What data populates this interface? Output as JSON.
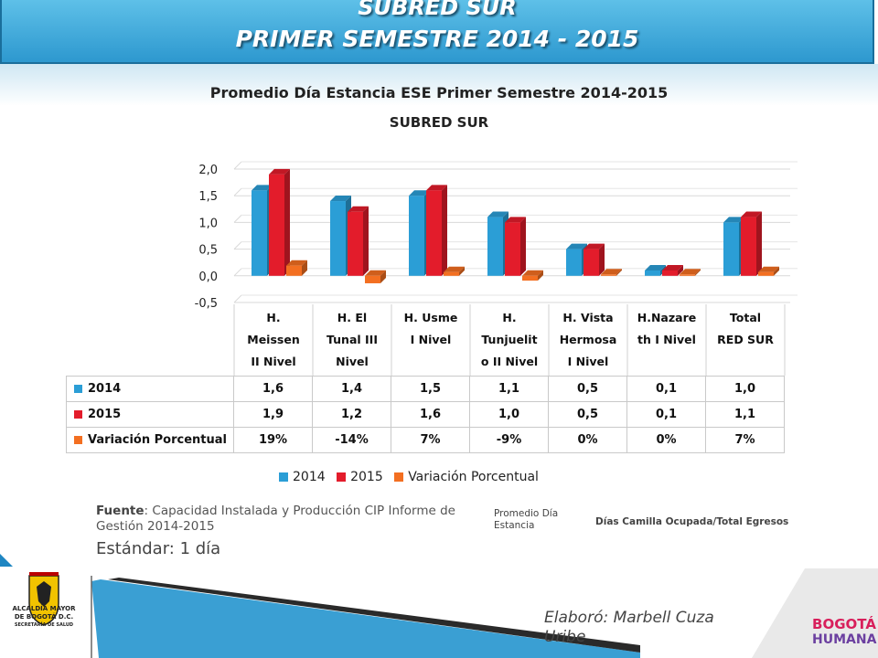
{
  "header": {
    "line1": "SUBRED SUR",
    "line2": "PRIMER SEMESTRE 2014 - 2015"
  },
  "chart_data": {
    "type": "bar",
    "title": "Promedio Día Estancia ESE Primer Semestre 2014-2015",
    "subtitle": "SUBRED SUR",
    "categories": [
      "H. Meissen II Nivel",
      "H. El Tunal III Nivel",
      "H. Usme I Nivel",
      "H. Tunjuelito II Nivel",
      "H. Vista Hermosa I Nivel",
      "H.Nazareth I Nivel",
      "Total RED SUR"
    ],
    "category_lines": [
      [
        "H.",
        "Meissen",
        "II Nivel"
      ],
      [
        "H. El",
        "Tunal III",
        "Nivel"
      ],
      [
        "H. Usme",
        "I Nivel"
      ],
      [
        "H.",
        "Tunjuelit",
        "o II Nivel"
      ],
      [
        "H. Vista",
        "Hermosa",
        "I Nivel"
      ],
      [
        "H.Nazare",
        "th I Nivel"
      ],
      [
        "Total",
        "RED SUR"
      ]
    ],
    "yticks": [
      "2,0",
      "1,5",
      "1,0",
      "0,5",
      "0,0",
      "-0,5"
    ],
    "ylim": [
      -0.5,
      2.0
    ],
    "grid": true,
    "legend_position": "bottom",
    "series": [
      {
        "name": "2014",
        "color": "#2b9ed6",
        "values": [
          1.6,
          1.4,
          1.5,
          1.1,
          0.5,
          0.1,
          1.0
        ],
        "labels": [
          "1,6",
          "1,4",
          "1,5",
          "1,1",
          "0,5",
          "0,1",
          "1,0"
        ]
      },
      {
        "name": "2015",
        "color": "#e31c2b",
        "values": [
          1.9,
          1.2,
          1.6,
          1.0,
          0.5,
          0.1,
          1.1
        ],
        "labels": [
          "1,9",
          "1,2",
          "1,6",
          "1,0",
          "0,5",
          "0,1",
          "1,1"
        ]
      },
      {
        "name": "Variación Porcentual",
        "color": "#f36f21",
        "values": [
          0.19,
          -0.14,
          0.07,
          -0.09,
          0.0,
          0.0,
          0.07
        ],
        "labels": [
          "19%",
          "-14%",
          "7%",
          "-9%",
          "0%",
          "0%",
          "7%"
        ]
      }
    ]
  },
  "notes": {
    "fuente_label": "Fuente",
    "fuente_text": ": Capacidad Instalada y Producción CIP Informe de Gestión 2014-2015",
    "estandar": "Estándar: 1 día",
    "promedio": "Promedio Día Estancia",
    "dias": "Días Camilla Ocupada/Total Egresos",
    "elaboro": "Elaboró: Marbell Cuza Uribe"
  },
  "logos": {
    "alcaldia": [
      "ALCALDÍA MAYOR",
      "DE BOGOTÁ D.C.",
      "SECRETARÍA DE SALUD"
    ],
    "bogota": [
      "BOGOTÁ",
      "HUMANA"
    ]
  }
}
